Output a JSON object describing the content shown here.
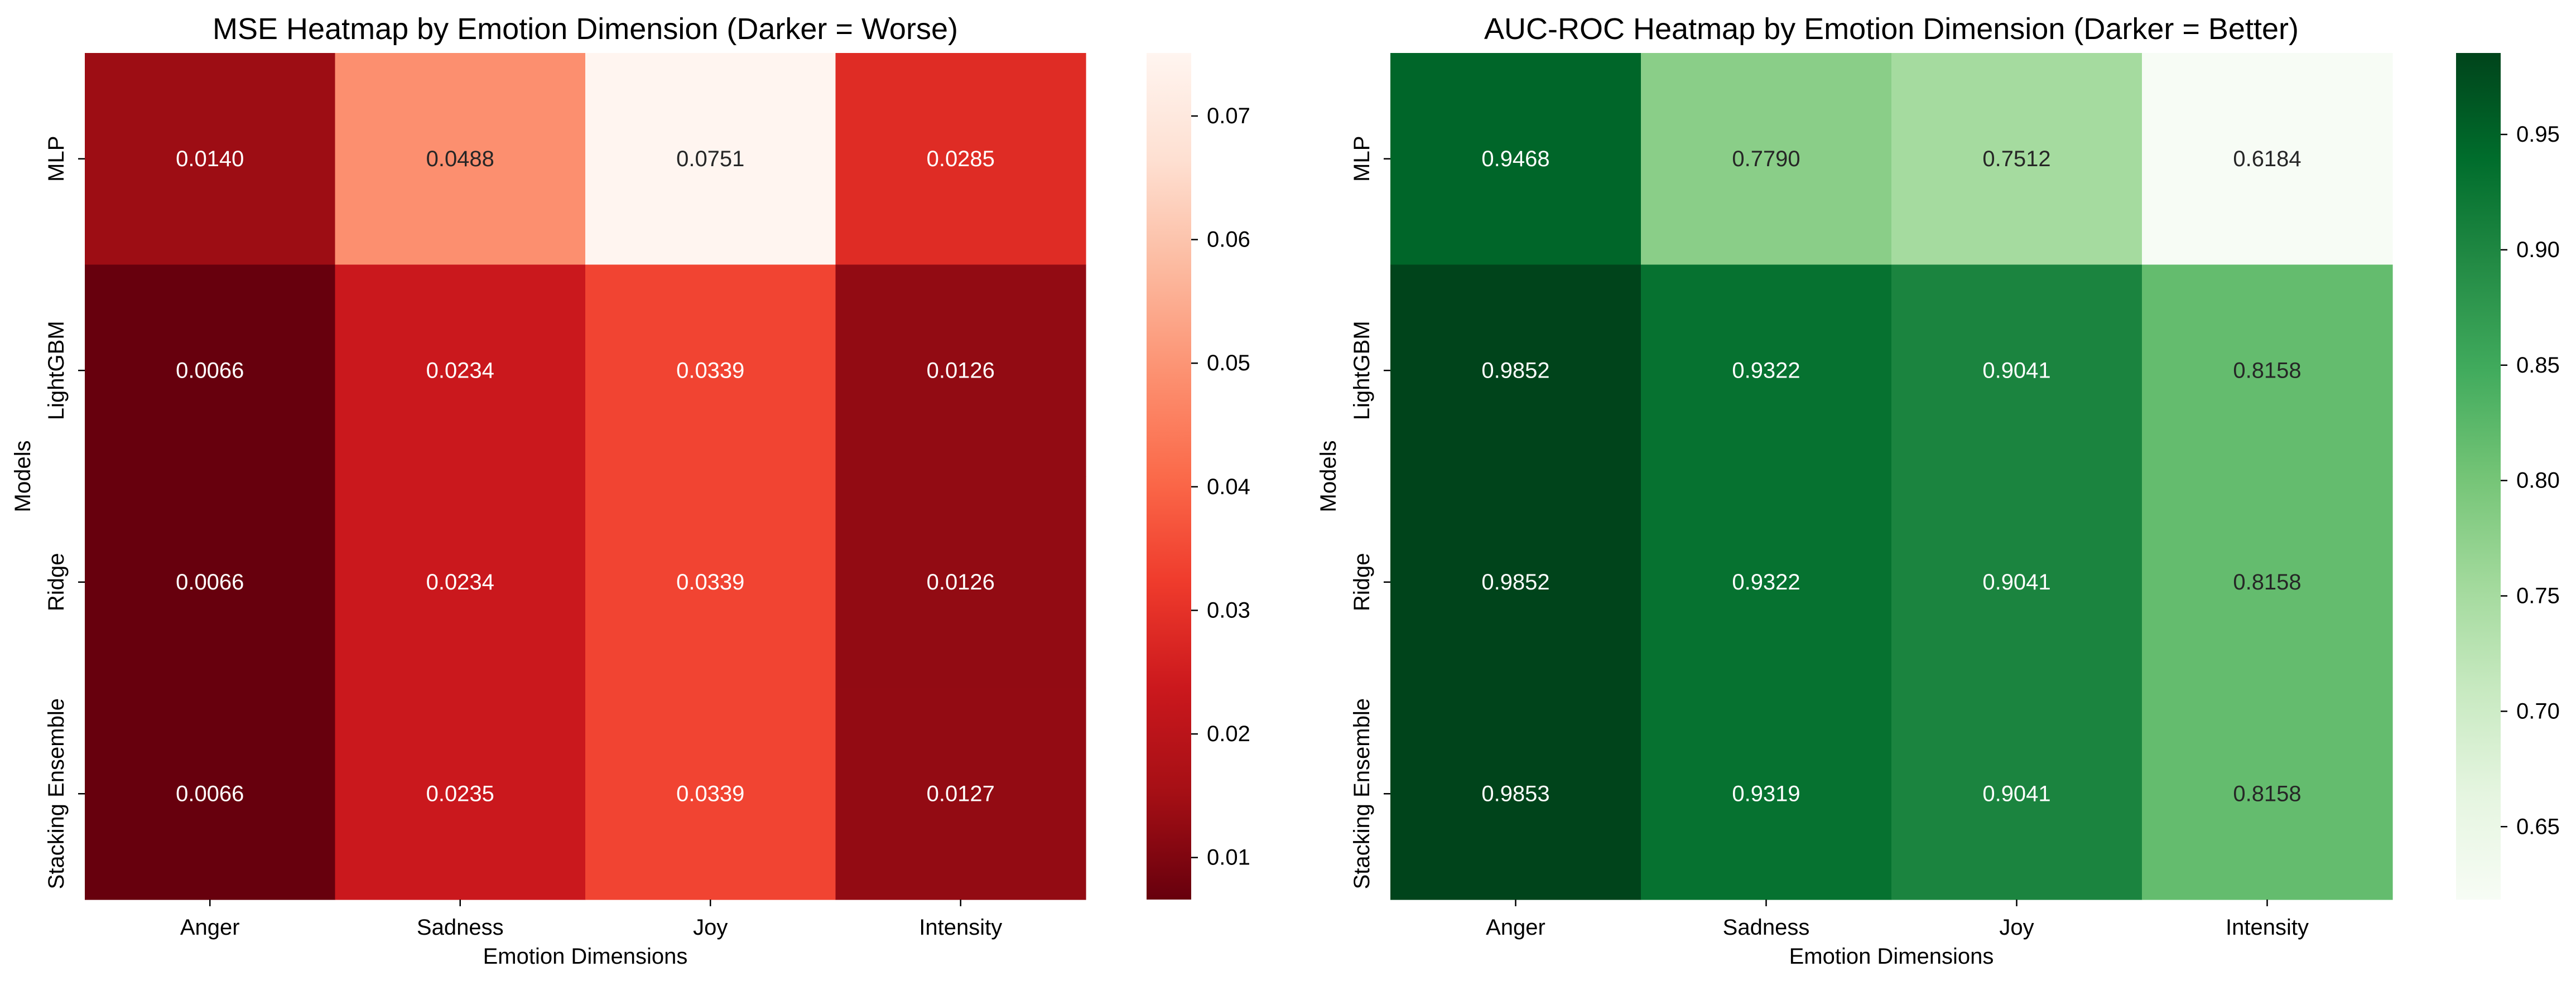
{
  "chart_data": [
    {
      "type": "heatmap",
      "title": "MSE Heatmap by Emotion Dimension (Darker = Worse)",
      "xlabel": "Emotion Dimensions",
      "ylabel": "Models",
      "x_categories": [
        "Anger",
        "Sadness",
        "Joy",
        "Intensity"
      ],
      "y_categories": [
        "MLP",
        "LightGBM",
        "Ridge",
        "Stacking Ensemble"
      ],
      "values": [
        [
          0.014,
          0.0488,
          0.0751,
          0.0285
        ],
        [
          0.0066,
          0.0234,
          0.0339,
          0.0126
        ],
        [
          0.0066,
          0.0234,
          0.0339,
          0.0126
        ],
        [
          0.0066,
          0.0235,
          0.0339,
          0.0127
        ]
      ],
      "value_labels": [
        [
          "0.0140",
          "0.0488",
          "0.0751",
          "0.0285"
        ],
        [
          "0.0066",
          "0.0234",
          "0.0339",
          "0.0126"
        ],
        [
          "0.0066",
          "0.0234",
          "0.0339",
          "0.0126"
        ],
        [
          "0.0066",
          "0.0235",
          "0.0339",
          "0.0127"
        ]
      ],
      "colormap": "Reds reversed",
      "colormap_stops": [
        "#67000d",
        "#a50f15",
        "#cb181d",
        "#ef3b2c",
        "#fb6a4a",
        "#fc9272",
        "#fcbba1",
        "#fee0d2",
        "#fff5f0"
      ],
      "color_range": [
        0.0066,
        0.0751
      ],
      "colorbar_ticks": [
        0.01,
        0.02,
        0.03,
        0.04,
        0.05,
        0.06,
        0.07
      ],
      "colorbar_tick_labels": [
        "0.01",
        "0.02",
        "0.03",
        "0.04",
        "0.05",
        "0.06",
        "0.07"
      ],
      "grid": false,
      "legend": "colorbar-right"
    },
    {
      "type": "heatmap",
      "title": "AUC-ROC Heatmap by Emotion Dimension (Darker = Better)",
      "xlabel": "Emotion Dimensions",
      "ylabel": "Models",
      "x_categories": [
        "Anger",
        "Sadness",
        "Joy",
        "Intensity"
      ],
      "y_categories": [
        "MLP",
        "LightGBM",
        "Ridge",
        "Stacking Ensemble"
      ],
      "values": [
        [
          0.9468,
          0.779,
          0.7512,
          0.6184
        ],
        [
          0.9852,
          0.9322,
          0.9041,
          0.8158
        ],
        [
          0.9852,
          0.9322,
          0.9041,
          0.8158
        ],
        [
          0.9853,
          0.9319,
          0.9041,
          0.8158
        ]
      ],
      "value_labels": [
        [
          "0.9468",
          "0.7790",
          "0.7512",
          "0.6184"
        ],
        [
          "0.9852",
          "0.9322",
          "0.9041",
          "0.8158"
        ],
        [
          "0.9852",
          "0.9322",
          "0.9041",
          "0.8158"
        ],
        [
          "0.9853",
          "0.9319",
          "0.9041",
          "0.8158"
        ]
      ],
      "colormap": "Greens",
      "colormap_stops": [
        "#f7fcf5",
        "#e5f5e0",
        "#c7e9c0",
        "#a1d99b",
        "#74c476",
        "#41ab5d",
        "#238b45",
        "#006d2c",
        "#00441b"
      ],
      "color_range": [
        0.6184,
        0.9853
      ],
      "colorbar_ticks": [
        0.65,
        0.7,
        0.75,
        0.8,
        0.85,
        0.9,
        0.95
      ],
      "colorbar_tick_labels": [
        "0.65",
        "0.70",
        "0.75",
        "0.80",
        "0.85",
        "0.90",
        "0.95"
      ],
      "grid": false,
      "legend": "colorbar-right"
    }
  ]
}
